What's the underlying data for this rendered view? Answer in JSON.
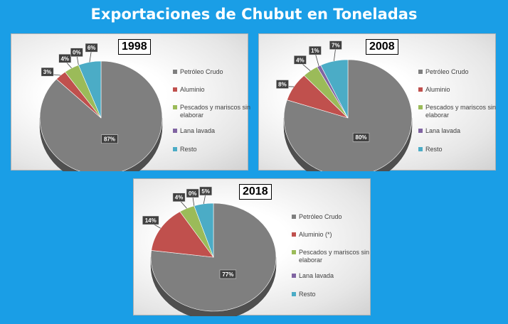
{
  "page": {
    "title": "Exportaciones de Chubut en Toneladas"
  },
  "colors": {
    "petroleo": "#7f7f7f",
    "aluminio": "#c0504d",
    "pescados": "#9bbb59",
    "lana": "#8064a2",
    "resto": "#4bacc6"
  },
  "chart_data": [
    {
      "type": "pie",
      "title": "1998",
      "categories": [
        "Petróleo Crudo",
        "Aluminio",
        "Pescados y mariscos sin elaborar",
        "Lana lavada",
        "Resto"
      ],
      "values": [
        87,
        3,
        4,
        0,
        6
      ],
      "data_labels": [
        "87%",
        "3%",
        "4%",
        "0%",
        "6%"
      ],
      "legend_position": "right"
    },
    {
      "type": "pie",
      "title": "2008",
      "categories": [
        "Petróleo Crudo",
        "Aluminio",
        "Pescados y mariscos sin elaborar",
        "Lana lavada",
        "Resto"
      ],
      "values": [
        80,
        8,
        4,
        1,
        7
      ],
      "data_labels": [
        "80%",
        "8%",
        "4%",
        "1%",
        "7%"
      ],
      "legend_position": "right"
    },
    {
      "type": "pie",
      "title": "2018",
      "categories": [
        "Petróleo Crudo",
        "Aluminio (*)",
        "Pescados y mariscos sin elaborar",
        "Lana lavada",
        "Resto"
      ],
      "values": [
        77,
        14,
        4,
        0,
        5
      ],
      "data_labels": [
        "77%",
        "14%",
        "4%",
        "0%",
        "5%"
      ],
      "legend_position": "right"
    }
  ]
}
